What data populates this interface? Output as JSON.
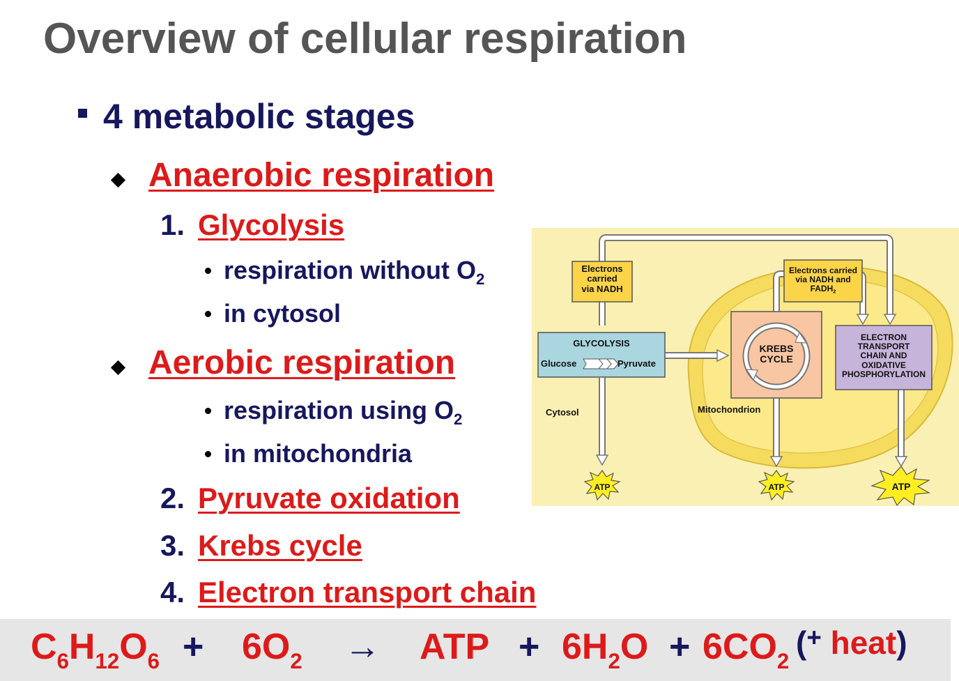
{
  "title": "Overview of cellular respiration",
  "stages_heading": "4 metabolic stages",
  "anaerobic": {
    "heading": "Anaerobic respiration",
    "step_number": "1.",
    "step_label": "Glycolysis",
    "bullets": [
      {
        "text": "respiration without O",
        "sub": "2"
      },
      {
        "text": "in cytosol",
        "sub": ""
      }
    ]
  },
  "aerobic": {
    "heading": "Aerobic respiration",
    "bullets": [
      {
        "text": "respiration using O",
        "sub": "2"
      },
      {
        "text": "in mitochondria",
        "sub": ""
      }
    ],
    "steps": [
      {
        "number": "2.",
        "label": "Pyruvate oxidation"
      },
      {
        "number": "3.",
        "label": "Krebs cycle"
      },
      {
        "number": "4.",
        "label": "Electron transport chain"
      }
    ]
  },
  "diagram": {
    "electrons_nadh": [
      "Electrons",
      "carried",
      "via NADH"
    ],
    "electrons_nadh_fadh": [
      "Electrons carried",
      "via NADH and",
      "FADH"
    ],
    "fadh_sub": "2",
    "glycolysis_title": "GLYCOLYSIS",
    "glucose": "Glucose",
    "pyruvate": "Pyruvate",
    "krebs": [
      "KREBS",
      "CYCLE"
    ],
    "etc": [
      "ELECTRON",
      "TRANSPORT",
      "CHAIN AND",
      "OXIDATIVE",
      "PHOSPHORYLATION"
    ],
    "cytosol": "Cytosol",
    "mitochondrion": "Mitochondrion",
    "atp": "ATP",
    "colors": {
      "background": "#fbf0b4",
      "mitochondrion": "#f6dc5e",
      "glycolysis_box": "#a9d6df",
      "krebs_box": "#f8c6a2",
      "etc_box": "#c7b4da",
      "electron_box": "#fbd448",
      "starburst": "#ffee22"
    }
  },
  "equation": {
    "glucose": {
      "c": "C",
      "c_sub": "6",
      "h": "H",
      "h_sub": "12",
      "o": "O",
      "o_sub": "6"
    },
    "plus": "+",
    "oxygen": {
      "coef": "6O",
      "sub": "2"
    },
    "arrow": "→",
    "atp": "ATP",
    "water": {
      "coef": "6H",
      "sub": "2",
      "rest": "O"
    },
    "co2": {
      "coef": "6CO",
      "sub": "2"
    },
    "heat_open": "(",
    "heat_plus": "+",
    "heat_word": " heat",
    "heat_close": ")"
  }
}
